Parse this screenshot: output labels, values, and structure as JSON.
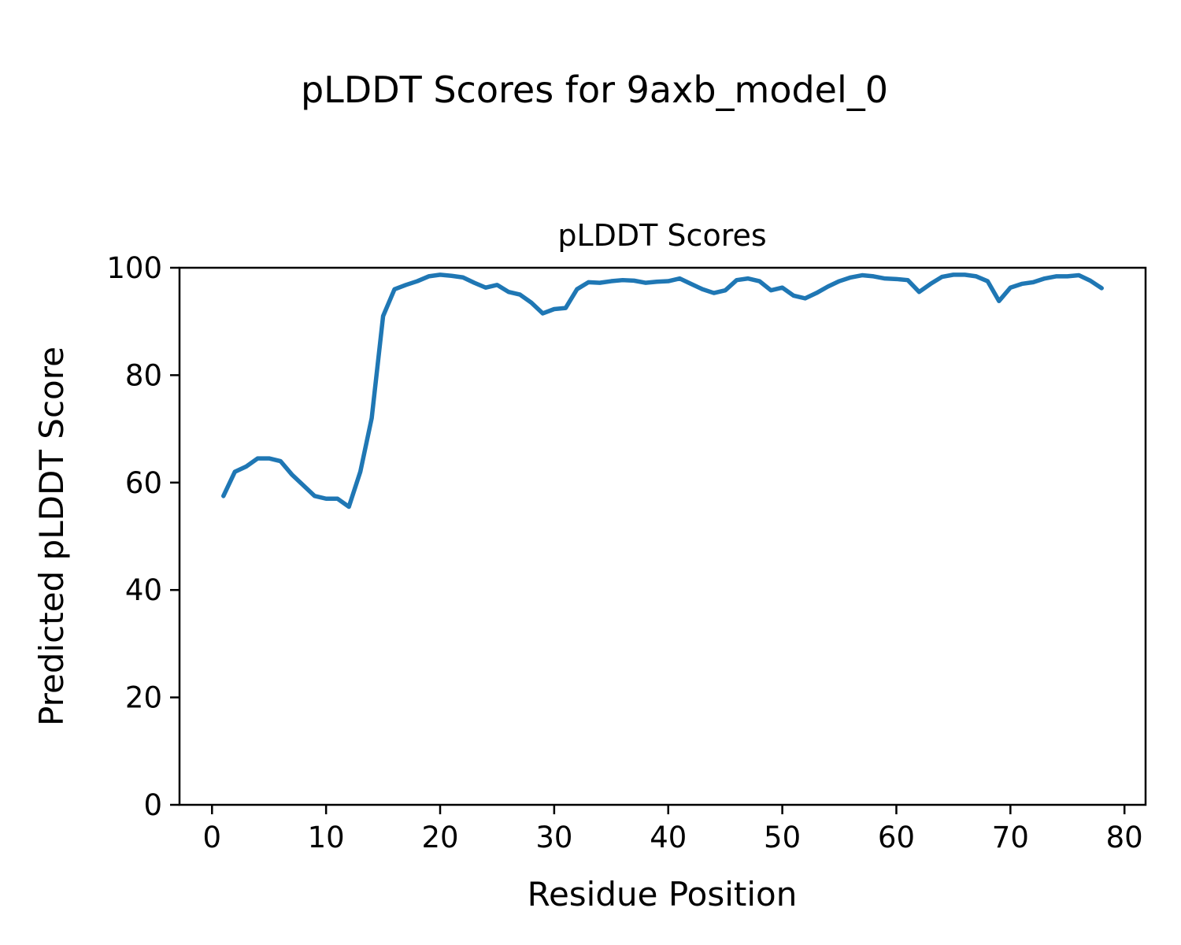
{
  "chart_data": {
    "type": "line",
    "title": "pLDDT Scores for 9axb_model_0",
    "axes_title": "pLDDT Scores",
    "xlabel": "Residue Position",
    "ylabel": "Predicted pLDDT Score",
    "x": [
      1,
      2,
      3,
      4,
      5,
      6,
      7,
      8,
      9,
      10,
      11,
      12,
      13,
      14,
      15,
      16,
      17,
      18,
      19,
      20,
      21,
      22,
      23,
      24,
      25,
      26,
      27,
      28,
      29,
      30,
      31,
      32,
      33,
      34,
      35,
      36,
      37,
      38,
      39,
      40,
      41,
      42,
      43,
      44,
      45,
      46,
      47,
      48,
      49,
      50,
      51,
      52,
      53,
      54,
      55,
      56,
      57,
      58,
      59,
      60,
      61,
      62,
      63,
      64,
      65,
      66,
      67,
      68,
      69,
      70,
      71,
      72,
      73,
      74,
      75,
      76,
      77,
      78
    ],
    "series": [
      {
        "name": "pLDDT",
        "values": [
          57.5,
          62,
          63,
          64.5,
          64.5,
          64,
          61.5,
          59.5,
          57.5,
          57,
          57,
          55.5,
          62,
          72,
          91,
          96,
          96.8,
          97.5,
          98.4,
          98.7,
          98.5,
          98.2,
          97.2,
          96.3,
          96.8,
          95.5,
          95,
          93.5,
          91.5,
          92.3,
          92.5,
          96,
          97.3,
          97.2,
          97.5,
          97.7,
          97.6,
          97.2,
          97.4,
          97.5,
          98,
          97,
          96,
          95.3,
          95.8,
          97.7,
          98,
          97.5,
          95.8,
          96.3,
          94.8,
          94.3,
          95.3,
          96.5,
          97.5,
          98.2,
          98.6,
          98.4,
          98,
          97.9,
          97.7,
          95.5,
          97,
          98.3,
          98.7,
          98.7,
          98.4,
          97.5,
          93.8,
          96.3,
          97,
          97.3,
          98,
          98.4,
          98.4,
          98.6,
          97.6,
          96.2
        ]
      }
    ],
    "xlim": [
      -2.85,
      81.85
    ],
    "ylim": [
      0,
      100
    ],
    "x_ticks": [
      0,
      10,
      20,
      30,
      40,
      50,
      60,
      70,
      80
    ],
    "y_ticks": [
      0,
      20,
      40,
      60,
      80,
      100
    ],
    "line_color": "#1f77b4",
    "axis_color": "#000000",
    "background": "#ffffff",
    "grid": false,
    "legend_position": "none"
  }
}
